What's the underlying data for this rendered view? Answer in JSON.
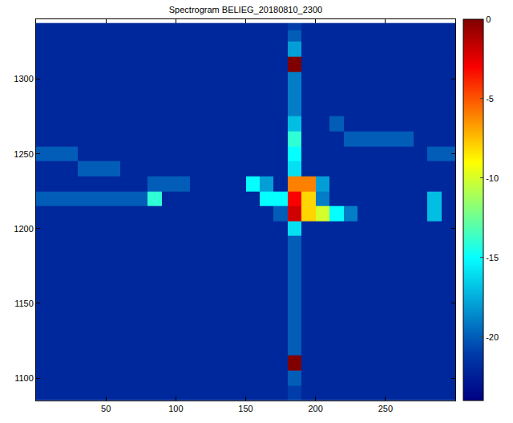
{
  "chart_data": {
    "type": "heatmap",
    "title": "Spectrogram BELIEG_20180810_2300",
    "color": "Jet",
    "xlim": [
      0,
      300
    ],
    "xticks": [
      50,
      100,
      150,
      200,
      250
    ],
    "ylim": [
      1085,
      1340
    ],
    "yticks": [
      1100,
      1150,
      1200,
      1250,
      1300
    ],
    "colorbar": {
      "range": [
        -24,
        0
      ],
      "ticks": [
        0,
        -5,
        -10,
        -15,
        -20
      ]
    },
    "x": [
      5,
      15,
      25,
      35,
      45,
      55,
      65,
      75,
      85,
      95,
      105,
      115,
      125,
      135,
      145,
      155,
      165,
      175,
      185,
      195,
      205,
      215,
      225,
      235,
      245,
      255,
      265,
      275,
      285,
      295
    ],
    "y": [
      1090,
      1100,
      1110,
      1120,
      1130,
      1140,
      1150,
      1160,
      1170,
      1180,
      1190,
      1200,
      1210,
      1220,
      1230,
      1240,
      1250,
      1260,
      1270,
      1280,
      1290,
      1300,
      1310,
      1320,
      1330,
      1335
    ],
    "z": [
      [
        -22,
        -22,
        -22,
        -22,
        -22,
        -22,
        -22,
        -22,
        -22,
        -22,
        -22,
        -22,
        -22,
        -22,
        -22,
        -22,
        -22,
        -22,
        -21,
        -22,
        -22,
        -22,
        -22,
        -22,
        -22,
        -22,
        -22,
        -22,
        -22,
        -22
      ],
      [
        -22,
        -22,
        -22,
        -22,
        -22,
        -22,
        -22,
        -22,
        -22,
        -22,
        -22,
        -22,
        -22,
        -22,
        -22,
        -22,
        -22,
        -22,
        -20,
        -22,
        -22,
        -22,
        -22,
        -22,
        -22,
        -22,
        -22,
        -22,
        -22,
        -22
      ],
      [
        -22,
        -22,
        -22,
        -22,
        -22,
        -22,
        -22,
        -22,
        -22,
        -22,
        -22,
        -22,
        -22,
        -22,
        -22,
        -22,
        -22,
        -22,
        0,
        -22,
        -22,
        -22,
        -22,
        -22,
        -22,
        -22,
        -22,
        -22,
        -22,
        -22
      ],
      [
        -22,
        -22,
        -22,
        -22,
        -22,
        -22,
        -22,
        -22,
        -22,
        -22,
        -22,
        -22,
        -22,
        -22,
        -22,
        -22,
        -22,
        -22,
        -20,
        -22,
        -22,
        -22,
        -22,
        -22,
        -22,
        -22,
        -22,
        -22,
        -22,
        -22
      ],
      [
        -22,
        -22,
        -22,
        -22,
        -22,
        -22,
        -22,
        -22,
        -22,
        -22,
        -22,
        -22,
        -22,
        -22,
        -22,
        -22,
        -22,
        -22,
        -20,
        -22,
        -22,
        -22,
        -22,
        -22,
        -22,
        -22,
        -22,
        -22,
        -22,
        -22
      ],
      [
        -22,
        -22,
        -22,
        -22,
        -22,
        -22,
        -22,
        -22,
        -22,
        -22,
        -22,
        -22,
        -22,
        -22,
        -22,
        -22,
        -22,
        -22,
        -20,
        -22,
        -22,
        -22,
        -22,
        -22,
        -22,
        -22,
        -22,
        -22,
        -22,
        -22
      ],
      [
        -22,
        -22,
        -22,
        -22,
        -22,
        -22,
        -22,
        -22,
        -22,
        -22,
        -22,
        -22,
        -22,
        -22,
        -22,
        -22,
        -22,
        -22,
        -20,
        -22,
        -22,
        -22,
        -22,
        -22,
        -22,
        -22,
        -22,
        -22,
        -22,
        -22
      ],
      [
        -22,
        -22,
        -22,
        -22,
        -22,
        -22,
        -22,
        -22,
        -22,
        -22,
        -22,
        -22,
        -22,
        -22,
        -22,
        -22,
        -22,
        -22,
        -20,
        -22,
        -22,
        -22,
        -22,
        -22,
        -22,
        -22,
        -22,
        -22,
        -22,
        -22
      ],
      [
        -22,
        -22,
        -22,
        -22,
        -22,
        -22,
        -22,
        -22,
        -22,
        -22,
        -22,
        -22,
        -22,
        -22,
        -22,
        -22,
        -22,
        -22,
        -20,
        -22,
        -22,
        -22,
        -22,
        -22,
        -22,
        -22,
        -22,
        -22,
        -22,
        -22
      ],
      [
        -22,
        -22,
        -22,
        -22,
        -22,
        -22,
        -22,
        -22,
        -22,
        -22,
        -22,
        -22,
        -22,
        -22,
        -22,
        -22,
        -22,
        -22,
        -20,
        -22,
        -22,
        -22,
        -22,
        -22,
        -22,
        -22,
        -22,
        -22,
        -22,
        -22
      ],
      [
        -22,
        -22,
        -22,
        -22,
        -22,
        -22,
        -22,
        -22,
        -22,
        -22,
        -22,
        -22,
        -22,
        -22,
        -22,
        -22,
        -22,
        -22,
        -20,
        -22,
        -22,
        -22,
        -22,
        -22,
        -22,
        -22,
        -22,
        -22,
        -22,
        -22
      ],
      [
        -22,
        -22,
        -22,
        -22,
        -22,
        -22,
        -22,
        -22,
        -22,
        -22,
        -22,
        -22,
        -22,
        -22,
        -22,
        -22,
        -22,
        -22,
        -16,
        -22,
        -22,
        -22,
        -22,
        -22,
        -22,
        -22,
        -22,
        -22,
        -22,
        -22
      ],
      [
        -22,
        -22,
        -22,
        -22,
        -22,
        -22,
        -22,
        -22,
        -22,
        -22,
        -22,
        -22,
        -22,
        -22,
        -22,
        -22,
        -22,
        -20,
        -2,
        -8,
        -10,
        -15,
        -19,
        -22,
        -22,
        -22,
        -22,
        -22,
        -17,
        -22
      ],
      [
        -20,
        -20,
        -20,
        -20,
        -20,
        -20,
        -20,
        -20,
        -14,
        -22,
        -22,
        -22,
        -22,
        -22,
        -22,
        -22,
        -15,
        -15,
        -3,
        -8,
        -19,
        -22,
        -22,
        -22,
        -22,
        -22,
        -22,
        -22,
        -17,
        -22
      ],
      [
        -22,
        -22,
        -22,
        -22,
        -22,
        -22,
        -22,
        -22,
        -20,
        -20,
        -20,
        -22,
        -22,
        -22,
        -22,
        -15,
        -18,
        -22,
        -6,
        -6,
        -18,
        -22,
        -22,
        -22,
        -22,
        -22,
        -22,
        -22,
        -22,
        -22
      ],
      [
        -22,
        -22,
        -22,
        -20,
        -20,
        -20,
        -22,
        -22,
        -22,
        -22,
        -22,
        -22,
        -22,
        -22,
        -22,
        -22,
        -22,
        -22,
        -16,
        -22,
        -22,
        -22,
        -22,
        -22,
        -22,
        -22,
        -22,
        -22,
        -22,
        -22
      ],
      [
        -20,
        -20,
        -20,
        -22,
        -22,
        -22,
        -22,
        -22,
        -22,
        -22,
        -22,
        -22,
        -22,
        -22,
        -22,
        -22,
        -22,
        -22,
        -15,
        -22,
        -22,
        -22,
        -22,
        -22,
        -22,
        -22,
        -22,
        -22,
        -20,
        -20
      ],
      [
        -22,
        -22,
        -22,
        -22,
        -22,
        -22,
        -22,
        -22,
        -22,
        -22,
        -22,
        -22,
        -22,
        -22,
        -22,
        -22,
        -22,
        -22,
        -14,
        -22,
        -22,
        -22,
        -20,
        -20,
        -20,
        -20,
        -20,
        -22,
        -22,
        -22
      ],
      [
        -22,
        -22,
        -22,
        -22,
        -22,
        -22,
        -22,
        -22,
        -22,
        -22,
        -22,
        -22,
        -22,
        -22,
        -22,
        -22,
        -22,
        -22,
        -17,
        -22,
        -22,
        -20,
        -22,
        -22,
        -22,
        -22,
        -22,
        -22,
        -22,
        -22
      ],
      [
        -22,
        -22,
        -22,
        -22,
        -22,
        -22,
        -22,
        -22,
        -22,
        -22,
        -22,
        -22,
        -22,
        -22,
        -22,
        -22,
        -22,
        -22,
        -19,
        -22,
        -22,
        -22,
        -22,
        -22,
        -22,
        -22,
        -22,
        -22,
        -22,
        -22
      ],
      [
        -22,
        -22,
        -22,
        -22,
        -22,
        -22,
        -22,
        -22,
        -22,
        -22,
        -22,
        -22,
        -22,
        -22,
        -22,
        -22,
        -22,
        -22,
        -19,
        -22,
        -22,
        -22,
        -22,
        -22,
        -22,
        -22,
        -22,
        -22,
        -22,
        -22
      ],
      [
        -22,
        -22,
        -22,
        -22,
        -22,
        -22,
        -22,
        -22,
        -22,
        -22,
        -22,
        -22,
        -22,
        -22,
        -22,
        -22,
        -22,
        -22,
        -19,
        -22,
        -22,
        -22,
        -22,
        -22,
        -22,
        -22,
        -22,
        -22,
        -22,
        -22
      ],
      [
        -22,
        -22,
        -22,
        -22,
        -22,
        -22,
        -22,
        -22,
        -22,
        -22,
        -22,
        -22,
        -22,
        -22,
        -22,
        -22,
        -22,
        -22,
        0,
        -22,
        -22,
        -22,
        -22,
        -22,
        -22,
        -22,
        -22,
        -22,
        -22,
        -22
      ],
      [
        -22,
        -22,
        -22,
        -22,
        -22,
        -22,
        -22,
        -22,
        -22,
        -22,
        -22,
        -22,
        -22,
        -22,
        -22,
        -22,
        -22,
        -22,
        -18,
        -22,
        -22,
        -22,
        -22,
        -22,
        -22,
        -22,
        -22,
        -22,
        -22,
        -22
      ],
      [
        -22,
        -22,
        -22,
        -22,
        -22,
        -22,
        -22,
        -22,
        -22,
        -22,
        -22,
        -22,
        -22,
        -22,
        -22,
        -22,
        -22,
        -22,
        -20,
        -22,
        -22,
        -22,
        -22,
        -22,
        -22,
        -22,
        -22,
        -22,
        -22,
        -22
      ],
      [
        -22,
        -22,
        -22,
        -22,
        -22,
        -22,
        -22,
        -22,
        -22,
        -22,
        -22,
        -22,
        -22,
        -22,
        -22,
        -22,
        -22,
        -22,
        -21,
        -22,
        -22,
        -22,
        -22,
        -22,
        -22,
        -22,
        -22,
        -22,
        -22,
        -22
      ]
    ]
  }
}
